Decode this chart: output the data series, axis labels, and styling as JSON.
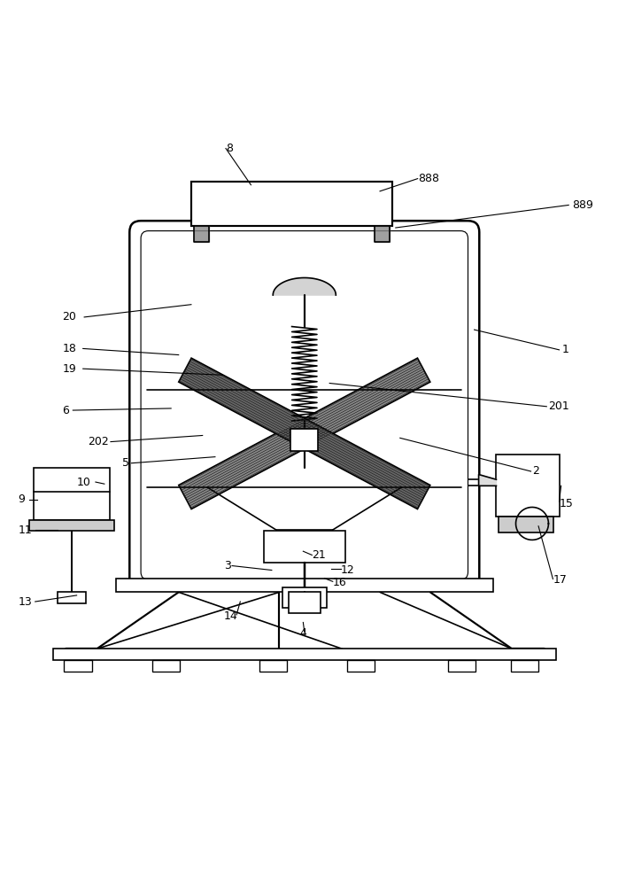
{
  "bg_color": "#ffffff",
  "line_color": "#000000",
  "line_width": 1.2,
  "fig_width": 7.16,
  "fig_height": 10.0
}
